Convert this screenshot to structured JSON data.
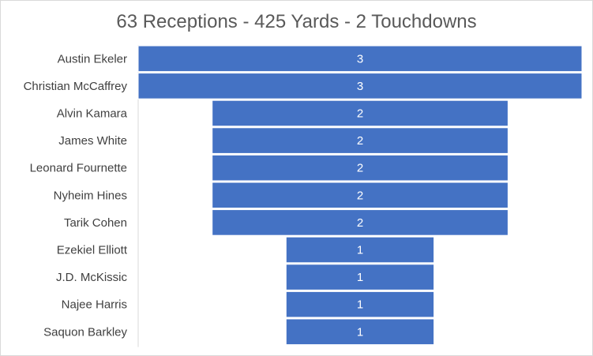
{
  "chart_data": {
    "type": "bar",
    "orientation": "horizontal",
    "style": "funnel",
    "title": "63 Receptions - 425 Yards - 2 Touchdowns",
    "categories": [
      "Austin Ekeler",
      "Christian McCaffrey",
      "Alvin Kamara",
      "James White",
      "Leonard Fournette",
      "Nyheim Hines",
      "Tarik Cohen",
      "Ezekiel Elliott",
      "J.D. McKissic",
      "Najee Harris",
      "Saquon Barkley"
    ],
    "values": [
      3,
      3,
      2,
      2,
      2,
      2,
      2,
      1,
      1,
      1,
      1
    ],
    "xlim": [
      0,
      3
    ],
    "grid": false,
    "legend": "none",
    "colors": {
      "bar": "#4472c4",
      "bar_outline": "#ffffff",
      "label": "#404040",
      "title": "#595959",
      "axis": "#d9d9d9"
    }
  }
}
